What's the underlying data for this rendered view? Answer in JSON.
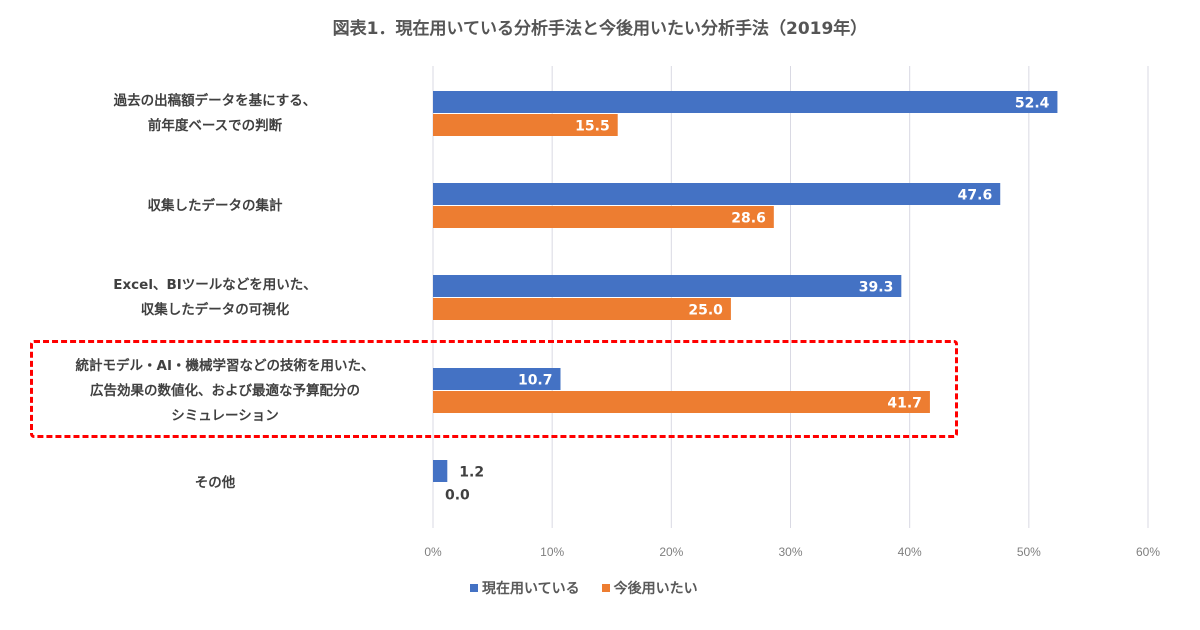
{
  "chart_data": {
    "type": "bar",
    "orientation": "horizontal",
    "title": "図表1．現在用いている分析手法と今後用いたい分析手法（2019年）",
    "xlabel": "",
    "ylabel": "",
    "xlim": [
      0,
      60
    ],
    "x_ticks": [
      "0%",
      "10%",
      "20%",
      "30%",
      "40%",
      "50%",
      "60%"
    ],
    "x_tick_values": [
      0,
      10,
      20,
      30,
      40,
      50,
      60
    ],
    "grid": true,
    "legend_position": "bottom",
    "categories": [
      [
        "過去の出稿額データを基にする、",
        "前年度ベースでの判断"
      ],
      [
        "収集したデータの集計"
      ],
      [
        "Excel、BIツールなどを用いた、",
        "収集したデータの可視化"
      ],
      [
        "統計モデル・AI・機械学習などの技術を用いた、",
        "広告効果の数値化、および最適な予算配分の",
        "シミュレーション"
      ],
      [
        "その他"
      ]
    ],
    "series": [
      {
        "name": "現在用いている",
        "color": "#4472C4",
        "values": [
          52.4,
          47.6,
          39.3,
          10.7,
          1.2
        ],
        "labels": [
          "52.4",
          "47.6",
          "39.3",
          "10.7",
          "1.2"
        ]
      },
      {
        "name": "今後用いたい",
        "color": "#ED7D31",
        "values": [
          15.5,
          28.6,
          25.0,
          41.7,
          0.0
        ],
        "labels": [
          "15.5",
          "28.6",
          "25.0",
          "41.7",
          "0.0"
        ]
      }
    ],
    "highlighted_category_index": 3,
    "highlight_color": "#FF0000"
  }
}
